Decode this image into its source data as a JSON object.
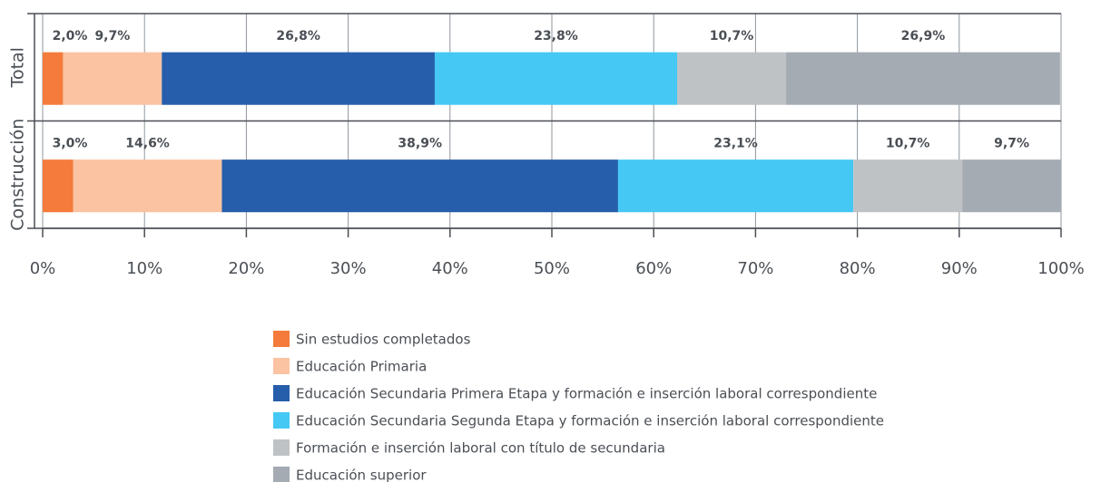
{
  "chart_data": {
    "type": "stacked-barh",
    "categories": [
      "Total",
      "Construcción"
    ],
    "series": [
      {
        "name": "Sin estudios completados",
        "color": "#f47b3b",
        "values": [
          2.0,
          3.0
        ],
        "value_labels": [
          "2,0%",
          "3,0%"
        ]
      },
      {
        "name": "Educación Primaria",
        "color": "#fbc3a2",
        "values": [
          9.7,
          14.6
        ],
        "value_labels": [
          "9,7%",
          "14,6%"
        ]
      },
      {
        "name": "Educación Secundaria Primera Etapa y formación e inserción laboral correspondiente",
        "color": "#265eab",
        "values": [
          26.8,
          38.9
        ],
        "value_labels": [
          "26,8%",
          "38,9%"
        ]
      },
      {
        "name": "Educación Secundaria Segunda Etapa y formación e inserción laboral correspondiente",
        "color": "#46c8f5",
        "values": [
          23.8,
          23.1
        ],
        "value_labels": [
          "23,8%",
          "23,1%"
        ]
      },
      {
        "name": "Formación e inserción laboral con título de secundaria",
        "color": "#bfc2c5",
        "values": [
          10.7,
          10.7
        ],
        "value_labels": [
          "10,7%",
          "10,7%"
        ]
      },
      {
        "name": "Educación superior",
        "color": "#a4abb3",
        "values": [
          26.9,
          9.7
        ],
        "value_labels": [
          "26,9%",
          "9,7%"
        ]
      }
    ],
    "xlim": [
      0,
      100
    ],
    "xticks": [
      {
        "value": 0,
        "label": "0%"
      },
      {
        "value": 10,
        "label": "10%"
      },
      {
        "value": 20,
        "label": "20%"
      },
      {
        "value": 30,
        "label": "30%"
      },
      {
        "value": 40,
        "label": "40%"
      },
      {
        "value": 50,
        "label": "50%"
      },
      {
        "value": 60,
        "label": "60%"
      },
      {
        "value": 70,
        "label": "70%"
      },
      {
        "value": 80,
        "label": "80%"
      },
      {
        "value": 90,
        "label": "90%"
      },
      {
        "value": 100,
        "label": "100%"
      }
    ],
    "grid": true
  }
}
